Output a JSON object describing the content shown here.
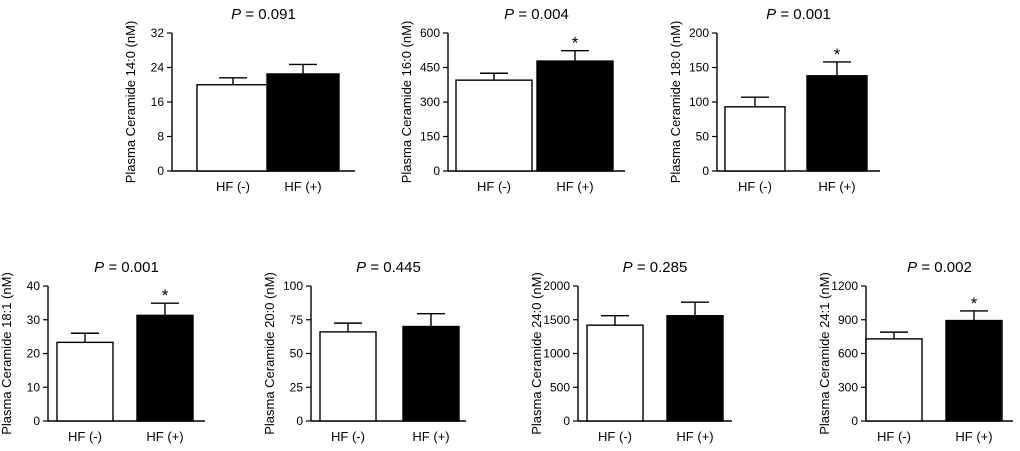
{
  "figure": {
    "title_prefix": "P = ",
    "x_categories": [
      "HF (-)",
      "HF (+)"
    ],
    "bar_colors": [
      "#ffffff",
      "#000000"
    ],
    "significance_marker": "*"
  },
  "chart_data": [
    {
      "type": "bar",
      "title": "P = 0.091",
      "p_value": "0.091",
      "ylabel": "Plasma Ceramide 14:0 (nM)",
      "categories": [
        "HF (-)",
        "HF (+)"
      ],
      "values": [
        20,
        22.5
      ],
      "errors": [
        1.6,
        2.2
      ],
      "significant": [
        false,
        false
      ],
      "ylim": [
        0,
        32
      ],
      "yticks": [
        0,
        8,
        16,
        24,
        32
      ]
    },
    {
      "type": "bar",
      "title": "P = 0.004",
      "p_value": "0.004",
      "ylabel": "Plasma Ceramide 16:0 (nM)",
      "categories": [
        "HF (-)",
        "HF (+)"
      ],
      "values": [
        395,
        478
      ],
      "errors": [
        30,
        45
      ],
      "significant": [
        false,
        true
      ],
      "ylim": [
        0,
        600
      ],
      "yticks": [
        0,
        150,
        300,
        450,
        600
      ]
    },
    {
      "type": "bar",
      "title": "P = 0.001",
      "p_value": "0.001",
      "ylabel": "Plasma Ceramide 18:0 (nM)",
      "categories": [
        "HF (-)",
        "HF (+)"
      ],
      "values": [
        93,
        138
      ],
      "errors": [
        14,
        20
      ],
      "significant": [
        false,
        true
      ],
      "ylim": [
        0,
        200
      ],
      "yticks": [
        0,
        50,
        100,
        150,
        200
      ]
    },
    {
      "type": "bar",
      "title": "P = 0.001",
      "p_value": "0.001",
      "ylabel": "Plasma Ceramide 18:1 (nM)",
      "categories": [
        "HF (-)",
        "HF (+)"
      ],
      "values": [
        23.3,
        31.3
      ],
      "errors": [
        2.7,
        3.6
      ],
      "significant": [
        false,
        true
      ],
      "ylim": [
        0,
        40
      ],
      "yticks": [
        0,
        10,
        20,
        30,
        40
      ]
    },
    {
      "type": "bar",
      "title": "P = 0.445",
      "p_value": "0.445",
      "ylabel": "Plasma Ceramide 20:0 (nM)",
      "categories": [
        "HF (-)",
        "HF (+)"
      ],
      "values": [
        66,
        70
      ],
      "errors": [
        6.5,
        9.5
      ],
      "significant": [
        false,
        false
      ],
      "ylim": [
        0,
        100
      ],
      "yticks": [
        0,
        25,
        50,
        75,
        100
      ]
    },
    {
      "type": "bar",
      "title": "P = 0.285",
      "p_value": "0.285",
      "ylabel": "Plasma Ceramide 24:0 (nM)",
      "categories": [
        "HF (-)",
        "HF (+)"
      ],
      "values": [
        1420,
        1560
      ],
      "errors": [
        140,
        200
      ],
      "significant": [
        false,
        false
      ],
      "ylim": [
        0,
        2000
      ],
      "yticks": [
        0,
        500,
        1000,
        1500,
        2000
      ]
    },
    {
      "type": "bar",
      "title": "P = 0.002",
      "p_value": "0.002",
      "ylabel": "Plasma Ceramide 24:1 (nM)",
      "categories": [
        "HF (-)",
        "HF (+)"
      ],
      "values": [
        730,
        893
      ],
      "errors": [
        60,
        85
      ],
      "significant": [
        false,
        true
      ],
      "ylim": [
        0,
        1200
      ],
      "yticks": [
        0,
        300,
        600,
        900,
        1200
      ]
    }
  ]
}
